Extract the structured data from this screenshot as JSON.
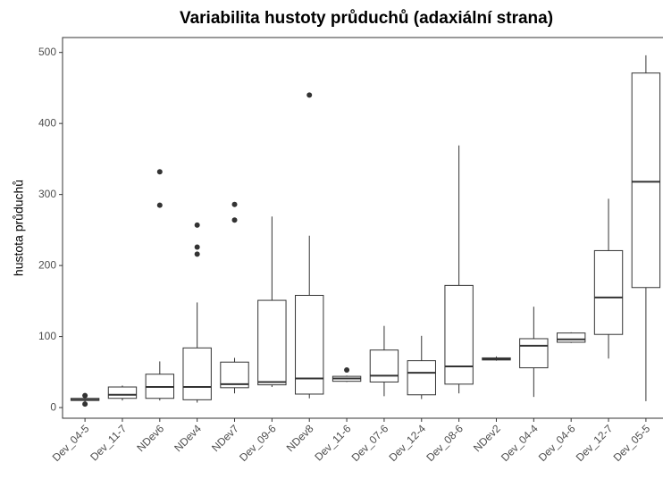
{
  "chart_data": {
    "type": "box",
    "title": "Variabilita hustoty průduchů (adaxiální strana)",
    "y_label": "hustota průduchů",
    "categories": [
      "Dev_04-5",
      "Dev_11-7",
      "NDev6",
      "NDev4",
      "NDev7",
      "Dev_09-6",
      "NDev8",
      "Dev_11-6",
      "Dev_07-6",
      "Dev_12-4",
      "Dev_08-6",
      "NDev2",
      "Dev_04-4",
      "Dev_04-6",
      "Dev_12-7",
      "Dev_05-5"
    ],
    "boxes": [
      {
        "min": 8,
        "q1": 10,
        "median": 11,
        "q3": 13,
        "max": 15,
        "outliers": [
          5,
          17
        ]
      },
      {
        "min": 10,
        "q1": 13,
        "median": 18,
        "q3": 29,
        "max": 31,
        "outliers": []
      },
      {
        "min": 10,
        "q1": 13,
        "median": 29,
        "q3": 47,
        "max": 65,
        "outliers": [
          285,
          332
        ]
      },
      {
        "min": 7,
        "q1": 11,
        "median": 29,
        "q3": 84,
        "max": 148,
        "outliers": [
          216,
          226,
          257
        ]
      },
      {
        "min": 20,
        "q1": 28,
        "median": 33,
        "q3": 64,
        "max": 70,
        "outliers": [
          264,
          286
        ]
      },
      {
        "min": 29,
        "q1": 32,
        "median": 36,
        "q3": 151,
        "max": 269,
        "outliers": []
      },
      {
        "min": 13,
        "q1": 19,
        "median": 41,
        "q3": 158,
        "max": 242,
        "outliers": [
          440
        ]
      },
      {
        "min": 36,
        "q1": 37,
        "median": 41,
        "q3": 44,
        "max": 45,
        "outliers": [
          53
        ]
      },
      {
        "min": 16,
        "q1": 36,
        "median": 45,
        "q3": 81,
        "max": 115,
        "outliers": []
      },
      {
        "min": 12,
        "q1": 18,
        "median": 49,
        "q3": 66,
        "max": 101,
        "outliers": []
      },
      {
        "min": 20,
        "q1": 33,
        "median": 58,
        "q3": 172,
        "max": 369,
        "outliers": []
      },
      {
        "min": 66,
        "q1": 67,
        "median": 68,
        "q3": 70,
        "max": 72,
        "outliers": []
      },
      {
        "min": 15,
        "q1": 56,
        "median": 87,
        "q3": 97,
        "max": 142,
        "outliers": []
      },
      {
        "min": 91,
        "q1": 92,
        "median": 96,
        "q3": 105,
        "max": 106,
        "outliers": []
      },
      {
        "min": 69,
        "q1": 103,
        "median": 155,
        "q3": 221,
        "max": 294,
        "outliers": []
      },
      {
        "min": 9,
        "q1": 169,
        "median": 318,
        "q3": 471,
        "max": 496,
        "outliers": []
      }
    ],
    "color": "#333333",
    "ylim": [
      -15,
      521
    ],
    "yticks": [
      0,
      100,
      200,
      300,
      400,
      500
    ],
    "grid": false
  }
}
